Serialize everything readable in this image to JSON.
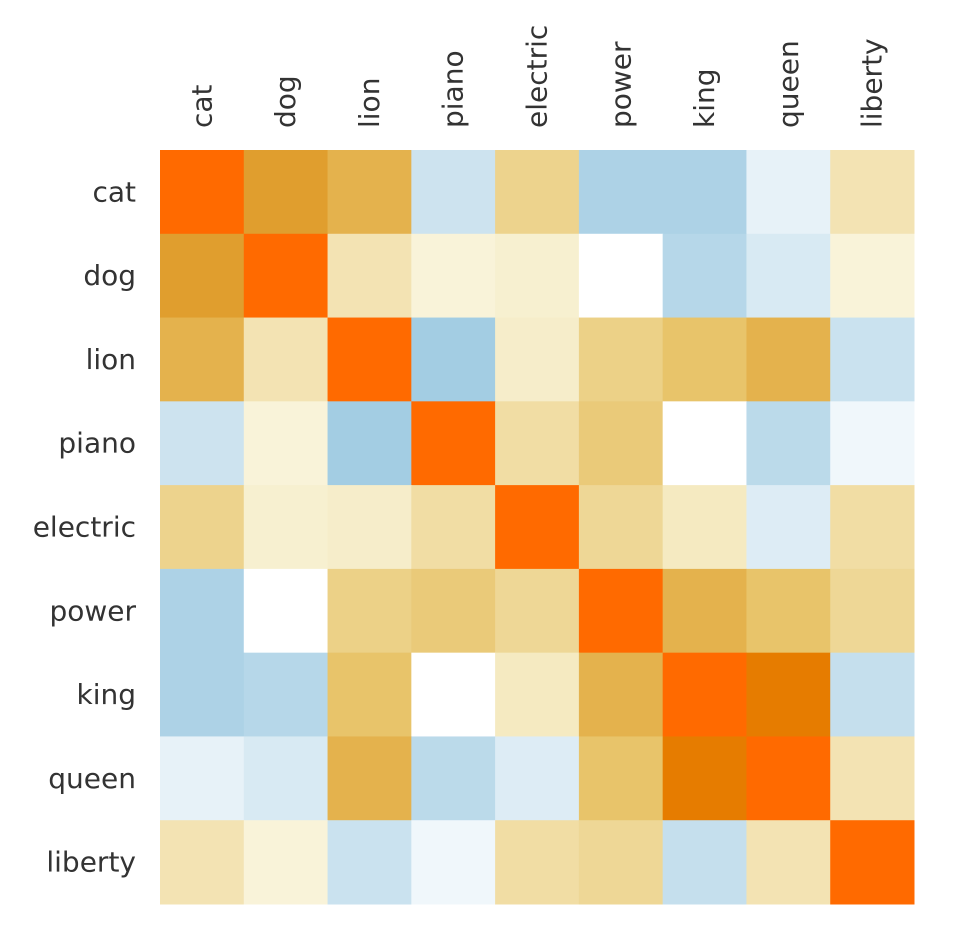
{
  "chart_data": {
    "type": "heatmap",
    "title": "",
    "xlabel": "",
    "ylabel": "",
    "x_categories": [
      "cat",
      "dog",
      "lion",
      "piano",
      "electric",
      "power",
      "king",
      "queen",
      "liberty"
    ],
    "y_categories": [
      "cat",
      "dog",
      "lion",
      "piano",
      "electric",
      "power",
      "king",
      "queen",
      "liberty"
    ],
    "x_axis_position": "top",
    "x_tick_rotation_deg": -90,
    "grid": false,
    "legend": "none",
    "value_range": [
      -1,
      1
    ],
    "colorscale": [
      [
        -1.0,
        "#9ecae1"
      ],
      [
        0.0,
        "#ffffff"
      ],
      [
        0.1,
        "#f7f0d0"
      ],
      [
        0.45,
        "#e8c46a"
      ],
      [
        0.65,
        "#e0a030"
      ],
      [
        0.85,
        "#e67c00"
      ],
      [
        1.0,
        "#ff6a00"
      ]
    ],
    "values": [
      [
        1.0,
        0.66,
        0.55,
        -0.52,
        0.33,
        -0.85,
        -0.85,
        -0.25,
        0.2
      ],
      [
        0.66,
        1.0,
        0.2,
        0.08,
        0.1,
        null,
        -0.75,
        -0.4,
        0.08
      ],
      [
        0.55,
        0.2,
        1.0,
        -0.95,
        0.12,
        0.35,
        0.45,
        0.55,
        -0.55
      ],
      [
        -0.52,
        0.08,
        -0.95,
        1.0,
        0.25,
        0.4,
        null,
        -0.7,
        -0.15
      ],
      [
        0.33,
        0.1,
        0.12,
        0.25,
        1.0,
        0.3,
        0.15,
        -0.35,
        0.25
      ],
      [
        -0.85,
        null,
        0.35,
        0.4,
        0.3,
        1.0,
        0.55,
        0.45,
        0.3
      ],
      [
        -0.85,
        -0.75,
        0.45,
        null,
        0.15,
        0.55,
        1.0,
        0.85,
        -0.6
      ],
      [
        -0.25,
        -0.4,
        0.55,
        -0.7,
        -0.35,
        0.45,
        0.85,
        1.0,
        0.2
      ],
      [
        0.2,
        0.08,
        -0.55,
        -0.15,
        0.25,
        0.3,
        -0.6,
        0.2,
        1.0
      ]
    ]
  }
}
